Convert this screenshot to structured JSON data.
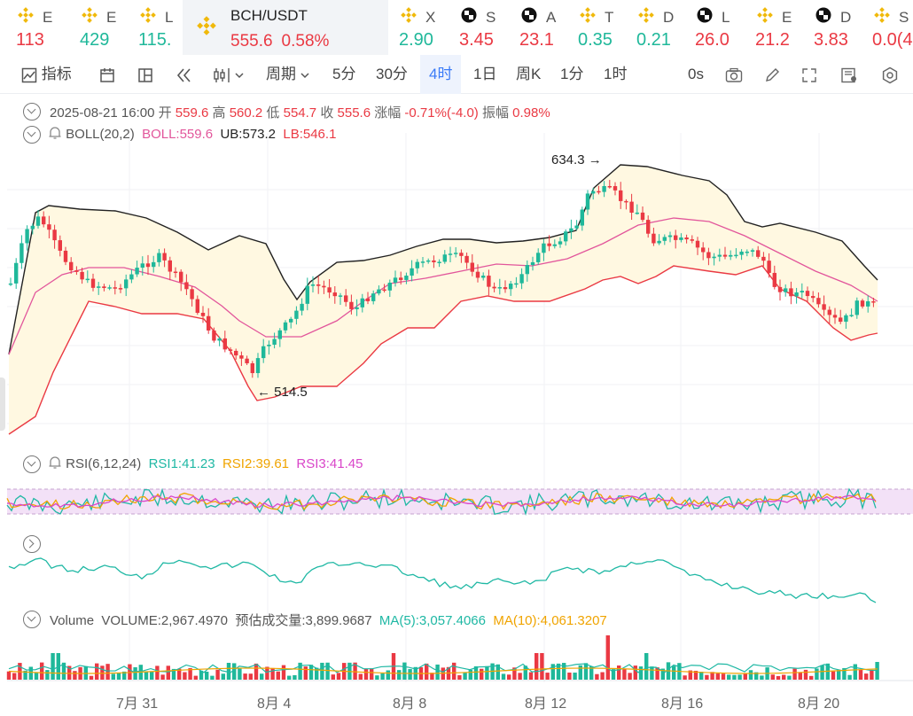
{
  "tickers": [
    {
      "icon": "bnb-icon",
      "name": "E",
      "price": "113",
      "dir": "dn"
    },
    {
      "icon": "bnb-icon",
      "name": "E",
      "price": "429",
      "dir": "up"
    },
    {
      "icon": "bnb-icon",
      "name": "L",
      "price": "115.",
      "dir": "up"
    },
    {
      "icon": "bnb-icon",
      "name": "BCH/USDT",
      "price": "555.6",
      "change": "0.58%",
      "dir": "dn",
      "active": true
    },
    {
      "icon": "bnb-icon",
      "name": "X",
      "price": "2.90",
      "dir": "up"
    },
    {
      "icon": "checker-icon",
      "name": "S",
      "price": "3.45",
      "dir": "dn"
    },
    {
      "icon": "checker-icon",
      "name": "A",
      "price": "23.1",
      "dir": "dn"
    },
    {
      "icon": "bnb-icon",
      "name": "T",
      "price": "0.35",
      "dir": "up"
    },
    {
      "icon": "bnb-icon",
      "name": "D",
      "price": "0.21",
      "dir": "up"
    },
    {
      "icon": "checker-icon",
      "name": "L",
      "price": "26.0",
      "dir": "dn"
    },
    {
      "icon": "bnb-icon",
      "name": "E",
      "price": "21.2",
      "dir": "dn"
    },
    {
      "icon": "checker-icon",
      "name": "D",
      "price": "3.83",
      "dir": "dn"
    },
    {
      "icon": "bnb-icon",
      "name": "S",
      "price": "0.0(4",
      "dir": "dn"
    }
  ],
  "toolbar": {
    "indicators": "指标",
    "period": "周期",
    "intervals": [
      "5分",
      "30分",
      "4时",
      "1日",
      "周K",
      "1分",
      "1时"
    ],
    "selected_interval": "4时",
    "countdown": "0s"
  },
  "ohlc": {
    "date": "2025-08-21 16:00",
    "open_label": "开",
    "open": "559.6",
    "high_label": "高",
    "high": "560.2",
    "low_label": "低",
    "low": "554.7",
    "close_label": "收",
    "close": "555.6",
    "change_label": "涨幅",
    "change": "-0.71%(-4.0)",
    "amp_label": "振幅",
    "amp": "0.98%"
  },
  "boll": {
    "name": "BOLL(20,2)",
    "boll": "BOLL:559.6",
    "ub": "UB:573.2",
    "lb": "LB:546.1"
  },
  "annotations": {
    "high": "634.3",
    "low": "514.5"
  },
  "rsi": {
    "name": "RSI(6,12,24)",
    "rsi1": "RSI1:41.23",
    "rsi2": "RSI2:39.61",
    "rsi3": "RSI3:41.45"
  },
  "volume": {
    "name": "Volume",
    "volume": "VOLUME:2,967.4970",
    "estimated": "预估成交量:3,899.9687",
    "ma5": "MA(5):3,057.4066",
    "ma10": "MA(10):4,061.3207"
  },
  "x_axis": [
    "7月 31",
    "8月 4",
    "8月 8",
    "8月 12",
    "8月 16",
    "8月 20"
  ],
  "colors": {
    "up": "#1fb89a",
    "down": "#ea3943",
    "boll_mid": "#e2569b",
    "bands": "#222222",
    "band_lower": "#ea3943",
    "rsi1": "#1fb8a4",
    "rsi2": "#f0a400",
    "rsi3": "#d946c9"
  }
}
